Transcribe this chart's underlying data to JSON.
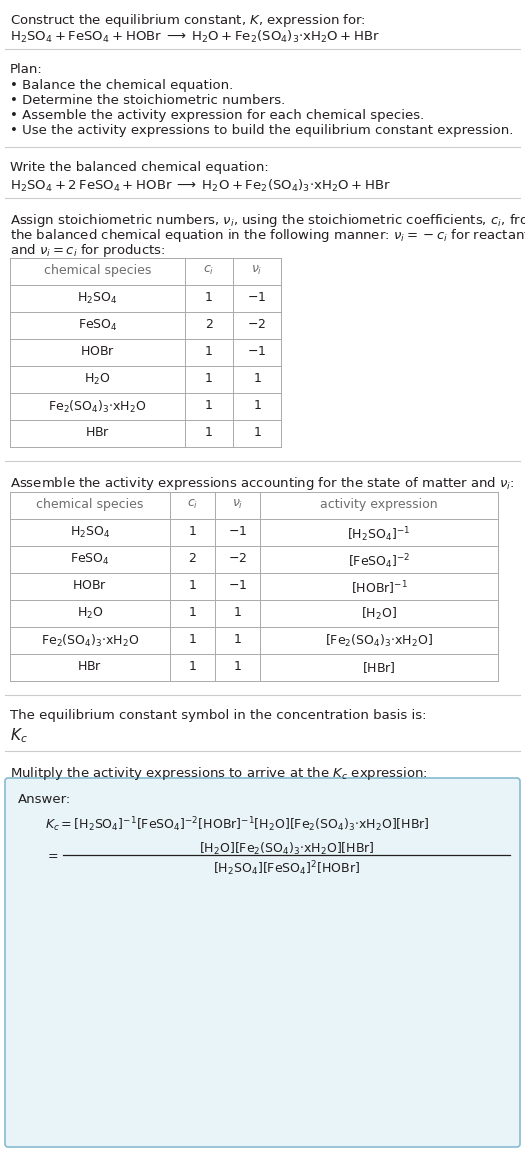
{
  "bg_color": "#ffffff",
  "text_color": "#231f20",
  "gray_color": "#6d6d6d",
  "title_line1": "Construct the equilibrium constant, $K$, expression for:",
  "title_line2": "$\\mathrm{H_2SO_4 + FeSO_4 + HOBr \\;\\longrightarrow\\; H_2O + Fe_2(SO_4)_3{\\cdot}xH_2O + HBr}$",
  "plan_header": "Plan:",
  "plan_items": [
    "\\bullet\\; Balance the chemical equation.",
    "\\bullet\\; Determine the stoichiometric numbers.",
    "\\bullet\\; Assemble the activity expression for each chemical species.",
    "\\bullet\\; Use the activity expressions to build the equilibrium constant expression."
  ],
  "balanced_header": "Write the balanced chemical equation:",
  "balanced_eq": "$\\mathrm{H_2SO_4 + 2\\,FeSO_4 + HOBr \\;\\longrightarrow\\; H_2O + Fe_2(SO_4)_3{\\cdot}xH_2O + HBr}$",
  "stoich_intro1": "Assign stoichiometric numbers, $\\nu_i$, using the stoichiometric coefficients, $c_i$, from",
  "stoich_intro2": "the balanced chemical equation in the following manner: $\\nu_i = -c_i$ for reactants",
  "stoich_intro3": "and $\\nu_i = c_i$ for products:",
  "table1_headers": [
    "chemical species",
    "$c_i$",
    "$\\nu_i$"
  ],
  "table1_rows": [
    [
      "$\\mathrm{H_2SO_4}$",
      "1",
      "$-1$"
    ],
    [
      "$\\mathrm{FeSO_4}$",
      "2",
      "$-2$"
    ],
    [
      "$\\mathrm{HOBr}$",
      "1",
      "$-1$"
    ],
    [
      "$\\mathrm{H_2O}$",
      "1",
      "$1$"
    ],
    [
      "$\\mathrm{Fe_2(SO_4)_3{\\cdot}xH_2O}$",
      "1",
      "$1$"
    ],
    [
      "$\\mathrm{HBr}$",
      "1",
      "$1$"
    ]
  ],
  "activity_intro": "Assemble the activity expressions accounting for the state of matter and $\\nu_i$:",
  "table2_headers": [
    "chemical species",
    "$c_i$",
    "$\\nu_i$",
    "activity expression"
  ],
  "table2_rows": [
    [
      "$\\mathrm{H_2SO_4}$",
      "1",
      "$-1$",
      "$[\\mathrm{H_2SO_4}]^{-1}$"
    ],
    [
      "$\\mathrm{FeSO_4}$",
      "2",
      "$-2$",
      "$[\\mathrm{FeSO_4}]^{-2}$"
    ],
    [
      "$\\mathrm{HOBr}$",
      "1",
      "$-1$",
      "$[\\mathrm{HOBr}]^{-1}$"
    ],
    [
      "$\\mathrm{H_2O}$",
      "1",
      "$1$",
      "$[\\mathrm{H_2O}]$"
    ],
    [
      "$\\mathrm{Fe_2(SO_4)_3{\\cdot}xH_2O}$",
      "1",
      "$1$",
      "$[\\mathrm{Fe_2(SO_4)_3{\\cdot}xH_2O}]$"
    ],
    [
      "$\\mathrm{HBr}$",
      "1",
      "$1$",
      "$[\\mathrm{HBr}]$"
    ]
  ],
  "kc_intro": "The equilibrium constant symbol in the concentration basis is:",
  "kc_symbol": "$K_c$",
  "multiply_intro": "Mulitply the activity expressions to arrive at the $K_c$ expression:",
  "answer_label": "Answer:",
  "answer_box_color": "#e8f4f8",
  "answer_box_border": "#88bbd0",
  "font_size_main": 9.5,
  "font_size_table": 9.0
}
